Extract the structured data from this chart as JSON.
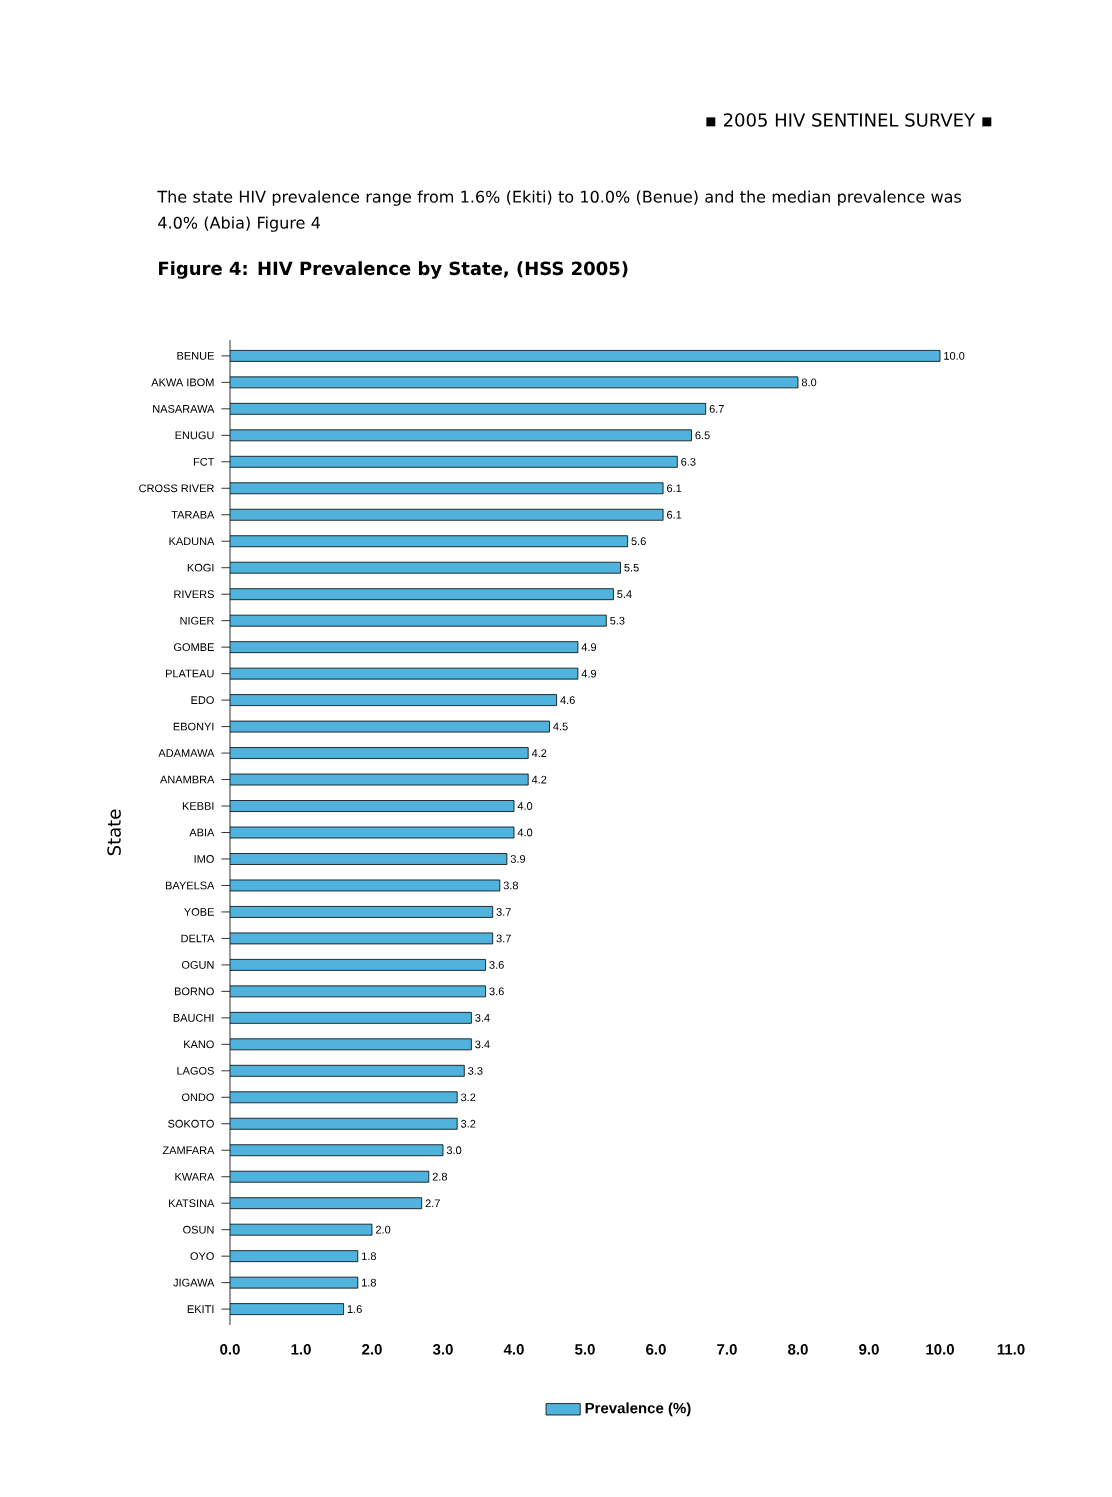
{
  "chart_data": {
    "type": "bar",
    "orientation": "horizontal",
    "title": "Figure 4: HIV Prevalence by State, (HSS 2005)",
    "ylabel": "State",
    "annotations": [
      "▪ 2005 HIV SENTINEL SURVEY ▪",
      "The state HIV prevalence range from 1.6% (Ekiti) to 10.0% (Benue) and the median prevalence was 4.0% (Abia) Figure 4"
    ],
    "categories": [
      "BENUE",
      "AKWA IBOM",
      "NASARAWA",
      "ENUGU",
      "FCT",
      "CROSS RIVER",
      "TARABA",
      "KADUNA",
      "KOGI",
      "RIVERS",
      "NIGER",
      "GOMBE",
      "PLATEAU",
      "EDO",
      "EBONYI",
      "ADAMAWA",
      "ANAMBRA",
      "KEBBI",
      "ABIA",
      "IMO",
      "BAYELSA",
      "YOBE",
      "DELTA",
      "OGUN",
      "BORNO",
      "BAUCHI",
      "KANO",
      "LAGOS",
      "ONDO",
      "SOKOTO",
      "ZAMFARA",
      "KWARA",
      "KATSINA",
      "OSUN",
      "OYO",
      "JIGAWA",
      "EKITI"
    ],
    "series": [
      {
        "name": "Prevalence (%)",
        "color": "#4fb3dd",
        "values": [
          10.0,
          8.0,
          6.7,
          6.5,
          6.3,
          6.1,
          6.1,
          5.6,
          5.5,
          5.4,
          5.3,
          4.9,
          4.9,
          4.6,
          4.5,
          4.2,
          4.2,
          4.0,
          4.0,
          3.9,
          3.8,
          3.7,
          3.7,
          3.6,
          3.6,
          3.4,
          3.4,
          3.3,
          3.2,
          3.2,
          3.0,
          2.8,
          2.7,
          2.0,
          1.8,
          1.8,
          1.6
        ],
        "value_labels": [
          "10.0",
          "8.0",
          "6.7",
          "6.5",
          "6.3",
          "6.1",
          "6.1",
          "5.6",
          "5.5",
          "5.4",
          "5.3",
          "4.9",
          "4.9",
          "4.6",
          "4.5",
          "4.2",
          "4.2",
          "4.0",
          "4.0",
          "3.9",
          "3.8",
          "3.7",
          "3.7",
          "3.6",
          "3.6",
          "3.4",
          "3.4",
          "3.3",
          "3.2",
          "3.2",
          "3.0",
          "2.8",
          "2.7",
          "2.0",
          "1.8",
          "1.8",
          "1.6"
        ]
      }
    ],
    "xlim": [
      0,
      11
    ],
    "xticks": [
      {
        "value": 0,
        "label": "0.0"
      },
      {
        "value": 1,
        "label": "1.0"
      },
      {
        "value": 2,
        "label": "2.0"
      },
      {
        "value": 3,
        "label": "3.0"
      },
      {
        "value": 4,
        "label": "4.0"
      },
      {
        "value": 5,
        "label": "5.0"
      },
      {
        "value": 6,
        "label": "6.0"
      },
      {
        "value": 7,
        "label": "7.0"
      },
      {
        "value": 8,
        "label": "8.0"
      },
      {
        "value": 9,
        "label": "9.0"
      },
      {
        "value": 10,
        "label": "10.0"
      },
      {
        "value": 11,
        "label": "11.0"
      }
    ],
    "legend": "bottom"
  }
}
